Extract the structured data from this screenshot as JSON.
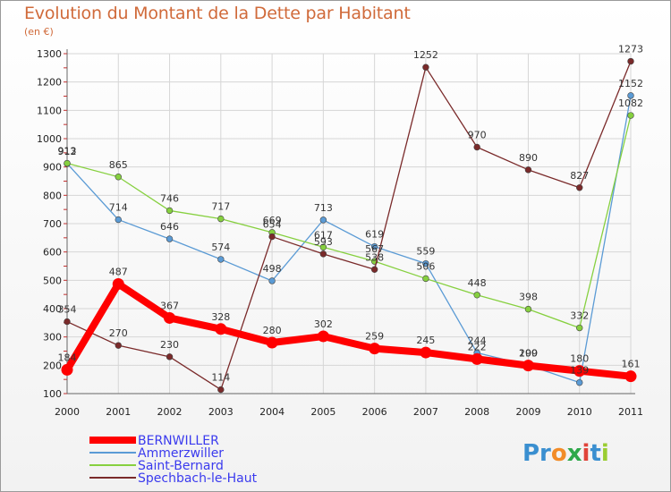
{
  "title": "Evolution du Montant de la Dette par Habitant",
  "unit": "(en €)",
  "logo": "Proxiti",
  "chart_data": {
    "type": "line",
    "title": "Evolution du Montant de la Dette par Habitant",
    "subtitle": "(en €)",
    "x": [
      "2000",
      "2001",
      "2002",
      "2003",
      "2004",
      "2005",
      "2006",
      "2007",
      "2008",
      "2009",
      "2010",
      "2011"
    ],
    "ylim": [
      100,
      1300
    ],
    "yticks": [
      100,
      200,
      300,
      400,
      500,
      600,
      700,
      800,
      900,
      1000,
      1100,
      1200,
      1300
    ],
    "grid": true,
    "legend_position": "bottom-left",
    "series": [
      {
        "name": "BERNWILLER",
        "color": "#ff0000",
        "values": [
          184,
          487,
          367,
          328,
          280,
          302,
          259,
          245,
          222,
          199,
          180,
          161
        ]
      },
      {
        "name": "Ammerzwiller",
        "color": "#5b9bd5",
        "values": [
          912,
          714,
          646,
          574,
          498,
          713,
          619,
          559,
          244,
          200,
          139,
          1152
        ]
      },
      {
        "name": "Saint-Bernard",
        "color": "#86d03f",
        "values": [
          913,
          865,
          746,
          717,
          669,
          617,
          567,
          506,
          448,
          398,
          332,
          1082
        ]
      },
      {
        "name": "Spechbach-le-Haut",
        "color": "#7a2a2a",
        "values": [
          354,
          270,
          230,
          114,
          654,
          593,
          538,
          1252,
          970,
          890,
          827,
          1273
        ]
      }
    ]
  }
}
